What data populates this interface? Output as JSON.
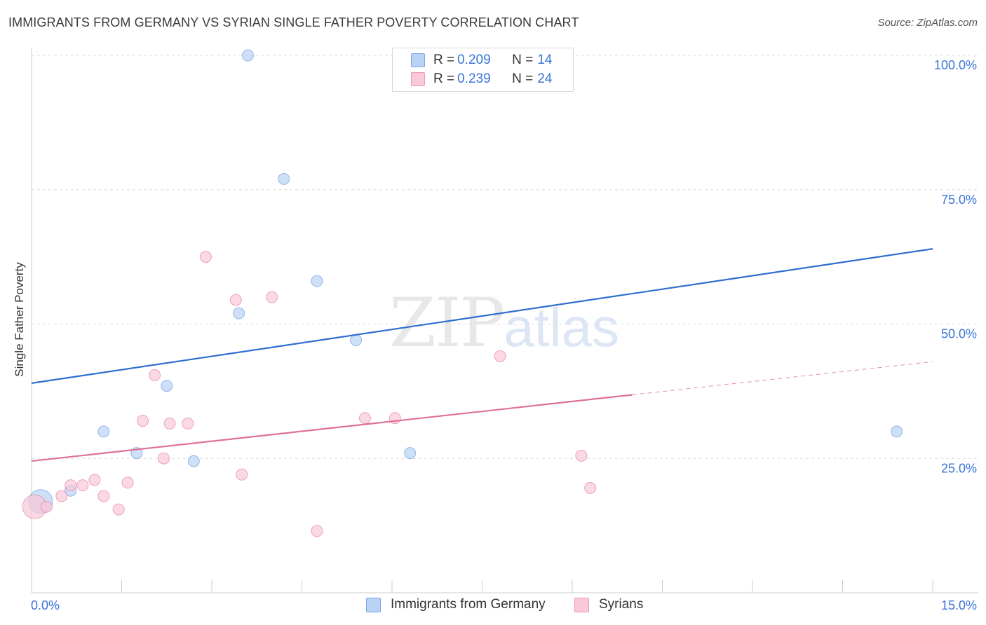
{
  "title": "IMMIGRANTS FROM GERMANY VS SYRIAN SINGLE FATHER POVERTY CORRELATION CHART",
  "source": "Source: ZipAtlas.com",
  "watermark": {
    "zip": "ZIP",
    "atlas": "atlas"
  },
  "legend_top": {
    "rows": [
      {
        "r_label": "R = ",
        "r_value": "0.209",
        "n_label": "N = ",
        "n_value": "14",
        "color": "#a9c9f2"
      },
      {
        "r_label": "R = ",
        "r_value": "0.239",
        "n_label": "N = ",
        "n_value": "24",
        "color": "#f7b9cc"
      }
    ]
  },
  "legend_bottom": [
    {
      "label": "Immigrants from Germany",
      "color": "#a9c9f2"
    },
    {
      "label": "Syrians",
      "color": "#f7b9cc"
    }
  ],
  "chart_data": {
    "type": "scatter",
    "title": "IMMIGRANTS FROM GERMANY VS SYRIAN SINGLE FATHER POVERTY CORRELATION CHART",
    "xlabel": "",
    "ylabel": "Single Father Poverty",
    "xlim": [
      0,
      15
    ],
    "ylim": [
      0,
      100
    ],
    "x_tick_labels": [
      "0.0%",
      "15.0%"
    ],
    "y_tick_labels": [
      "25.0%",
      "50.0%",
      "75.0%",
      "100.0%"
    ],
    "y_ticks": [
      25,
      50,
      75,
      100
    ],
    "grid": true,
    "series": [
      {
        "name": "Immigrants from Germany",
        "color": "#5b8fd9",
        "fill": "#b9d3f4",
        "points": [
          {
            "x": 0.15,
            "y": 17.0,
            "big": true
          },
          {
            "x": 0.65,
            "y": 19.0
          },
          {
            "x": 1.2,
            "y": 30.0
          },
          {
            "x": 1.75,
            "y": 26.0
          },
          {
            "x": 2.25,
            "y": 38.5
          },
          {
            "x": 2.7,
            "y": 24.5
          },
          {
            "x": 3.45,
            "y": 52.0
          },
          {
            "x": 3.6,
            "y": 100.0
          },
          {
            "x": 4.2,
            "y": 77.0
          },
          {
            "x": 4.75,
            "y": 58.0
          },
          {
            "x": 5.4,
            "y": 47.0
          },
          {
            "x": 6.3,
            "y": 26.0
          },
          {
            "x": 7.2,
            "y": 100.0
          },
          {
            "x": 14.4,
            "y": 30.0
          }
        ],
        "trend": {
          "x": [
            0,
            15
          ],
          "y": [
            39.0,
            64.0
          ],
          "dashed_from": null
        }
      },
      {
        "name": "Syrians",
        "color": "#e0709a",
        "fill": "#f9c9d8",
        "points": [
          {
            "x": 0.05,
            "y": 16.0,
            "big": true
          },
          {
            "x": 0.25,
            "y": 16.0
          },
          {
            "x": 0.5,
            "y": 18.0
          },
          {
            "x": 0.65,
            "y": 20.0
          },
          {
            "x": 0.85,
            "y": 20.0
          },
          {
            "x": 1.05,
            "y": 21.0
          },
          {
            "x": 1.2,
            "y": 18.0
          },
          {
            "x": 1.45,
            "y": 15.5
          },
          {
            "x": 1.6,
            "y": 20.5
          },
          {
            "x": 1.85,
            "y": 32.0
          },
          {
            "x": 2.05,
            "y": 40.5
          },
          {
            "x": 2.2,
            "y": 25.0
          },
          {
            "x": 2.3,
            "y": 31.5
          },
          {
            "x": 2.6,
            "y": 31.5
          },
          {
            "x": 2.9,
            "y": 62.5
          },
          {
            "x": 3.4,
            "y": 54.5
          },
          {
            "x": 3.5,
            "y": 22.0
          },
          {
            "x": 4.0,
            "y": 55.0
          },
          {
            "x": 4.75,
            "y": 11.5
          },
          {
            "x": 5.55,
            "y": 32.5
          },
          {
            "x": 6.05,
            "y": 32.5
          },
          {
            "x": 7.8,
            "y": 44.0
          },
          {
            "x": 9.15,
            "y": 25.5
          },
          {
            "x": 9.3,
            "y": 19.5
          }
        ],
        "trend": {
          "x": [
            0,
            15
          ],
          "y": [
            24.5,
            43.0
          ],
          "dashed_from": 10.0
        }
      }
    ]
  }
}
